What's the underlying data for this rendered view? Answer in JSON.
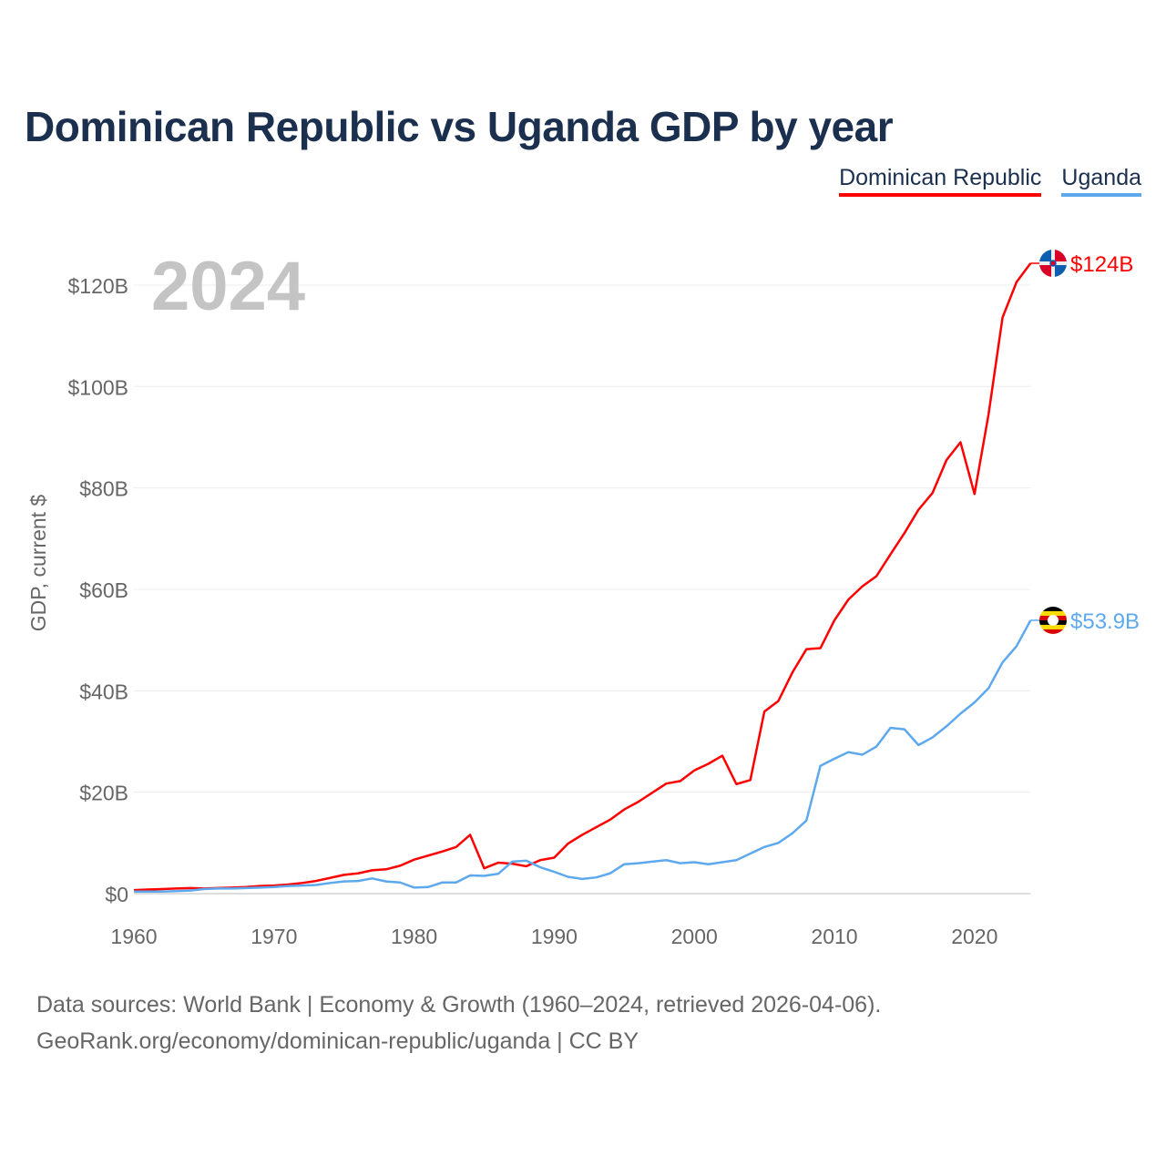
{
  "chart_data": {
    "type": "line",
    "title": "Dominican Republic vs Uganda GDP by year",
    "ylabel": "GDP, current $",
    "xlabel": "",
    "year_watermark": "2024",
    "xlim": [
      1960,
      2024
    ],
    "ylim": [
      0,
      125
    ],
    "x_ticks": [
      1960,
      1970,
      1980,
      1990,
      2000,
      2010,
      2020
    ],
    "y_ticks": [
      0,
      20,
      40,
      60,
      80,
      100,
      120
    ],
    "y_tick_labels": [
      "$0",
      "$20B",
      "$40B",
      "$60B",
      "$80B",
      "$100B",
      "$120B"
    ],
    "grid": true,
    "legend_placement": "top-right",
    "x": [
      1960,
      1961,
      1962,
      1963,
      1964,
      1965,
      1966,
      1967,
      1968,
      1969,
      1970,
      1971,
      1972,
      1973,
      1974,
      1975,
      1976,
      1977,
      1978,
      1979,
      1980,
      1981,
      1982,
      1983,
      1984,
      1985,
      1986,
      1987,
      1988,
      1989,
      1990,
      1991,
      1992,
      1993,
      1994,
      1995,
      1996,
      1997,
      1998,
      1999,
      2000,
      2001,
      2002,
      2003,
      2004,
      2005,
      2006,
      2007,
      2008,
      2009,
      2010,
      2011,
      2012,
      2013,
      2014,
      2015,
      2016,
      2017,
      2018,
      2019,
      2020,
      2021,
      2022,
      2023,
      2024
    ],
    "series": [
      {
        "name": "Dominican Republic",
        "color": "#ff0000",
        "end_label": "$124B",
        "values": [
          0.7,
          0.8,
          0.9,
          1.0,
          1.1,
          1.0,
          1.1,
          1.2,
          1.3,
          1.5,
          1.6,
          1.8,
          2.1,
          2.5,
          3.1,
          3.7,
          4.0,
          4.6,
          4.8,
          5.5,
          6.7,
          7.5,
          8.3,
          9.2,
          11.6,
          5.0,
          6.1,
          5.9,
          5.4,
          6.6,
          7.1,
          9.9,
          11.6,
          13.1,
          14.6,
          16.6,
          18.1,
          19.9,
          21.7,
          22.2,
          24.3,
          25.6,
          27.2,
          21.6,
          22.4,
          35.9,
          38.0,
          43.6,
          48.2,
          48.4,
          53.9,
          58.0,
          60.6,
          62.6,
          66.9,
          71.1,
          75.7,
          79.0,
          85.5,
          89.0,
          78.8,
          94.5,
          113.6,
          120.6,
          124.3
        ]
      },
      {
        "name": "Uganda",
        "color": "#5ea9ee",
        "end_label": "$53.9B",
        "values": [
          0.4,
          0.4,
          0.4,
          0.5,
          0.6,
          0.9,
          1.0,
          1.0,
          1.1,
          1.2,
          1.3,
          1.5,
          1.6,
          1.7,
          2.1,
          2.4,
          2.5,
          3.0,
          2.4,
          2.2,
          1.2,
          1.3,
          2.2,
          2.2,
          3.6,
          3.5,
          3.9,
          6.3,
          6.5,
          5.2,
          4.3,
          3.3,
          2.9,
          3.2,
          4.0,
          5.8,
          6.0,
          6.3,
          6.6,
          6.0,
          6.2,
          5.8,
          6.2,
          6.6,
          7.9,
          9.2,
          10.0,
          11.9,
          14.4,
          25.2,
          26.6,
          27.9,
          27.4,
          29.0,
          32.7,
          32.4,
          29.3,
          30.8,
          33.0,
          35.5,
          37.7,
          40.5,
          45.6,
          48.8,
          53.9
        ]
      }
    ]
  },
  "footer": {
    "line1": "Data sources: World Bank | Economy & Growth (1960–2024, retrieved 2026-04-06).",
    "line2": "GeoRank.org/economy/dominican-republic/uganda | CC BY"
  }
}
